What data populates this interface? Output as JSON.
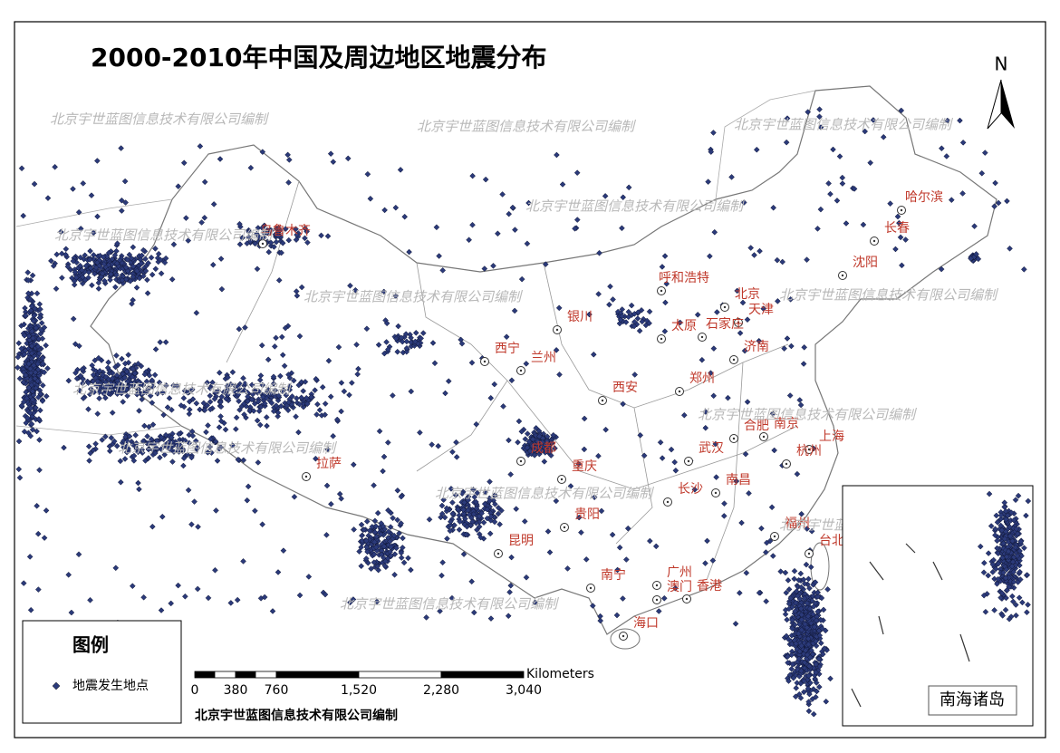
{
  "header": {
    "title": "2000-2010年中国及周边地区地震分布"
  },
  "watermark": "北京宇世蓝图信息技术有限公司编制",
  "north_arrow": "N",
  "cities": [
    "乌鲁木齐",
    "哈尔滨",
    "长春",
    "沈阳",
    "呼和浩特",
    "北京",
    "天津",
    "银川",
    "太原",
    "石家庄",
    "济南",
    "西宁",
    "兰州",
    "郑州",
    "西安",
    "合肥",
    "南京",
    "上海",
    "杭州",
    "武汉",
    "成都",
    "拉萨",
    "重庆",
    "南昌",
    "长沙",
    "贵阳",
    "昆明",
    "福州",
    "台北",
    "南宁",
    "广州",
    "澳门",
    "香港",
    "海口"
  ],
  "legend": {
    "title": "图例",
    "item": "地震发生地点"
  },
  "scale_bar": {
    "unit": "Kilometers",
    "ticks": [
      "0",
      "380",
      "760",
      "1,520",
      "2,280",
      "3,040"
    ]
  },
  "inset": {
    "label": "南海诸岛"
  },
  "credit": "北京宇世蓝图信息技术有限公司编制"
}
